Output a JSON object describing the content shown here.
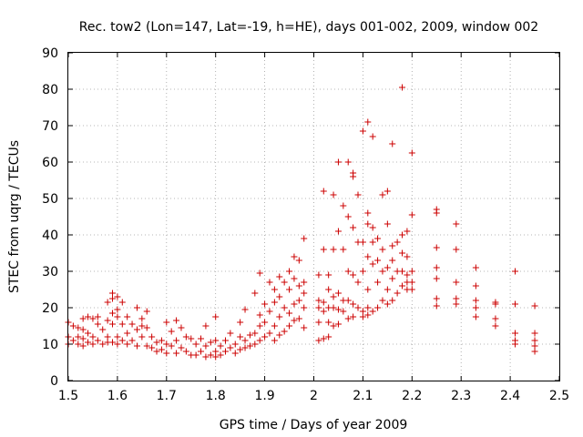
{
  "chart_data": {
    "type": "scatter",
    "title": "Rec. tow2 (Lon=147, Lat=-19, h=HE), days 001-002, 2009, window 002",
    "xlabel": "GPS time / Days of year 2009",
    "ylabel": "STEC from uqrg / TECUs",
    "xlim": [
      1.5,
      2.5
    ],
    "ylim": [
      0,
      90
    ],
    "xticks": [
      "1.5",
      "1.6",
      "1.7",
      "1.8",
      "1.9",
      "2",
      "2.1",
      "2.2",
      "2.3",
      "2.4",
      "2.5"
    ],
    "yticks": [
      "0",
      "10",
      "20",
      "30",
      "40",
      "50",
      "60",
      "70",
      "80",
      "90"
    ],
    "grid": true,
    "marker": "+",
    "color": "#cc0000",
    "series": [
      {
        "name": "STEC",
        "points": [
          [
            1.5,
            16.0
          ],
          [
            1.5,
            12.0
          ],
          [
            1.5,
            10.0
          ],
          [
            1.51,
            15.0
          ],
          [
            1.51,
            11.0
          ],
          [
            1.52,
            14.5
          ],
          [
            1.52,
            12.0
          ],
          [
            1.52,
            10.0
          ],
          [
            1.53,
            17.0
          ],
          [
            1.53,
            14.0
          ],
          [
            1.53,
            11.5
          ],
          [
            1.53,
            9.5
          ],
          [
            1.54,
            17.5
          ],
          [
            1.54,
            13.0
          ],
          [
            1.54,
            10.5
          ],
          [
            1.55,
            17.0
          ],
          [
            1.55,
            12.0
          ],
          [
            1.55,
            10.0
          ],
          [
            1.56,
            17.5
          ],
          [
            1.56,
            15.5
          ],
          [
            1.56,
            11.0
          ],
          [
            1.57,
            14.0
          ],
          [
            1.57,
            10.0
          ],
          [
            1.58,
            21.5
          ],
          [
            1.58,
            16.5
          ],
          [
            1.58,
            12.0
          ],
          [
            1.58,
            10.5
          ],
          [
            1.59,
            24.0
          ],
          [
            1.59,
            22.5
          ],
          [
            1.59,
            18.5
          ],
          [
            1.59,
            15.5
          ],
          [
            1.59,
            10.5
          ],
          [
            1.6,
            23.0
          ],
          [
            1.6,
            19.5
          ],
          [
            1.6,
            17.5
          ],
          [
            1.6,
            12.0
          ],
          [
            1.6,
            10.0
          ],
          [
            1.61,
            21.5
          ],
          [
            1.61,
            15.5
          ],
          [
            1.61,
            11.0
          ],
          [
            1.62,
            17.5
          ],
          [
            1.62,
            13.0
          ],
          [
            1.62,
            10.0
          ],
          [
            1.63,
            15.5
          ],
          [
            1.63,
            11.0
          ],
          [
            1.64,
            20.0
          ],
          [
            1.64,
            14.0
          ],
          [
            1.64,
            9.5
          ],
          [
            1.65,
            17.0
          ],
          [
            1.65,
            15.0
          ],
          [
            1.65,
            12.0
          ],
          [
            1.66,
            19.0
          ],
          [
            1.66,
            14.5
          ],
          [
            1.66,
            9.5
          ],
          [
            1.67,
            12.0
          ],
          [
            1.67,
            9.0
          ],
          [
            1.68,
            10.5
          ],
          [
            1.68,
            8.0
          ],
          [
            1.69,
            11.0
          ],
          [
            1.69,
            8.5
          ],
          [
            1.7,
            16.0
          ],
          [
            1.7,
            10.0
          ],
          [
            1.7,
            7.5
          ],
          [
            1.71,
            13.5
          ],
          [
            1.71,
            9.5
          ],
          [
            1.72,
            16.5
          ],
          [
            1.72,
            11.0
          ],
          [
            1.72,
            7.5
          ],
          [
            1.73,
            14.5
          ],
          [
            1.73,
            9.0
          ],
          [
            1.74,
            12.0
          ],
          [
            1.74,
            8.0
          ],
          [
            1.75,
            11.5
          ],
          [
            1.75,
            7.0
          ],
          [
            1.76,
            10.0
          ],
          [
            1.76,
            7.0
          ],
          [
            1.77,
            11.5
          ],
          [
            1.77,
            8.0
          ],
          [
            1.78,
            15.0
          ],
          [
            1.78,
            9.5
          ],
          [
            1.78,
            6.5
          ],
          [
            1.79,
            10.5
          ],
          [
            1.79,
            7.0
          ],
          [
            1.8,
            17.5
          ],
          [
            1.8,
            11.0
          ],
          [
            1.8,
            8.0
          ],
          [
            1.8,
            6.5
          ],
          [
            1.81,
            9.5
          ],
          [
            1.81,
            7.0
          ],
          [
            1.82,
            11.0
          ],
          [
            1.82,
            8.0
          ],
          [
            1.83,
            13.0
          ],
          [
            1.83,
            9.0
          ],
          [
            1.84,
            10.0
          ],
          [
            1.84,
            7.5
          ],
          [
            1.85,
            16.0
          ],
          [
            1.85,
            12.0
          ],
          [
            1.85,
            8.5
          ],
          [
            1.86,
            19.5
          ],
          [
            1.86,
            11.0
          ],
          [
            1.86,
            9.0
          ],
          [
            1.87,
            12.5
          ],
          [
            1.87,
            9.5
          ],
          [
            1.88,
            24.0
          ],
          [
            1.88,
            13.0
          ],
          [
            1.88,
            10.0
          ],
          [
            1.89,
            29.5
          ],
          [
            1.89,
            18.0
          ],
          [
            1.89,
            15.0
          ],
          [
            1.89,
            11.0
          ],
          [
            1.9,
            21.0
          ],
          [
            1.9,
            16.0
          ],
          [
            1.9,
            12.0
          ],
          [
            1.91,
            27.0
          ],
          [
            1.91,
            19.0
          ],
          [
            1.91,
            13.0
          ],
          [
            1.92,
            25.0
          ],
          [
            1.92,
            21.5
          ],
          [
            1.92,
            15.0
          ],
          [
            1.92,
            11.0
          ],
          [
            1.93,
            28.5
          ],
          [
            1.93,
            23.0
          ],
          [
            1.93,
            17.5
          ],
          [
            1.93,
            12.5
          ],
          [
            1.94,
            27.0
          ],
          [
            1.94,
            20.0
          ],
          [
            1.94,
            13.5
          ],
          [
            1.95,
            30.0
          ],
          [
            1.95,
            25.0
          ],
          [
            1.95,
            18.5
          ],
          [
            1.95,
            15.0
          ],
          [
            1.96,
            34.0
          ],
          [
            1.96,
            28.0
          ],
          [
            1.96,
            21.0
          ],
          [
            1.96,
            16.5
          ],
          [
            1.97,
            33.0
          ],
          [
            1.97,
            26.0
          ],
          [
            1.97,
            22.0
          ],
          [
            1.97,
            17.0
          ],
          [
            1.98,
            39.0
          ],
          [
            1.98,
            27.0
          ],
          [
            1.98,
            24.0
          ],
          [
            1.98,
            20.0
          ],
          [
            1.98,
            14.5
          ],
          [
            2.01,
            29.0
          ],
          [
            2.01,
            22.0
          ],
          [
            2.01,
            20.0
          ],
          [
            2.01,
            16.0
          ],
          [
            2.01,
            11.0
          ],
          [
            2.02,
            36.0
          ],
          [
            2.02,
            21.5
          ],
          [
            2.02,
            19.0
          ],
          [
            2.02,
            11.5
          ],
          [
            2.02,
            52.0
          ],
          [
            2.03,
            29.0
          ],
          [
            2.03,
            25.0
          ],
          [
            2.03,
            20.0
          ],
          [
            2.03,
            16.0
          ],
          [
            2.03,
            12.0
          ],
          [
            2.04,
            51.0
          ],
          [
            2.04,
            36.0
          ],
          [
            2.04,
            23.0
          ],
          [
            2.04,
            20.0
          ],
          [
            2.04,
            15.0
          ],
          [
            2.05,
            60.0
          ],
          [
            2.05,
            41.0
          ],
          [
            2.05,
            24.0
          ],
          [
            2.05,
            19.5
          ],
          [
            2.05,
            15.5
          ],
          [
            2.06,
            48.0
          ],
          [
            2.06,
            36.0
          ],
          [
            2.06,
            22.0
          ],
          [
            2.06,
            19.0
          ],
          [
            2.07,
            60.0
          ],
          [
            2.07,
            45.0
          ],
          [
            2.07,
            30.0
          ],
          [
            2.07,
            22.0
          ],
          [
            2.07,
            17.0
          ],
          [
            2.08,
            57.0
          ],
          [
            2.08,
            56.0
          ],
          [
            2.08,
            42.0
          ],
          [
            2.08,
            29.0
          ],
          [
            2.08,
            21.0
          ],
          [
            2.08,
            17.5
          ],
          [
            2.09,
            51.0
          ],
          [
            2.09,
            38.0
          ],
          [
            2.09,
            27.0
          ],
          [
            2.09,
            20.0
          ],
          [
            2.1,
            68.5
          ],
          [
            2.1,
            38.0
          ],
          [
            2.1,
            30.0
          ],
          [
            2.1,
            19.0
          ],
          [
            2.1,
            17.5
          ],
          [
            2.11,
            71.0
          ],
          [
            2.11,
            46.0
          ],
          [
            2.11,
            43.0
          ],
          [
            2.11,
            34.0
          ],
          [
            2.11,
            25.0
          ],
          [
            2.11,
            20.0
          ],
          [
            2.11,
            18.0
          ],
          [
            2.12,
            67.0
          ],
          [
            2.12,
            42.0
          ],
          [
            2.12,
            38.0
          ],
          [
            2.12,
            32.0
          ],
          [
            2.12,
            19.0
          ],
          [
            2.13,
            39.0
          ],
          [
            2.13,
            33.0
          ],
          [
            2.13,
            27.0
          ],
          [
            2.13,
            20.0
          ],
          [
            2.14,
            51.0
          ],
          [
            2.14,
            36.0
          ],
          [
            2.14,
            30.0
          ],
          [
            2.14,
            22.0
          ],
          [
            2.15,
            52.0
          ],
          [
            2.15,
            43.0
          ],
          [
            2.15,
            31.0
          ],
          [
            2.15,
            25.0
          ],
          [
            2.15,
            21.0
          ],
          [
            2.16,
            65.0
          ],
          [
            2.16,
            37.0
          ],
          [
            2.16,
            33.0
          ],
          [
            2.16,
            28.0
          ],
          [
            2.16,
            22.0
          ],
          [
            2.17,
            38.0
          ],
          [
            2.17,
            30.0
          ],
          [
            2.17,
            24.0
          ],
          [
            2.18,
            80.5
          ],
          [
            2.18,
            40.0
          ],
          [
            2.18,
            35.0
          ],
          [
            2.18,
            30.0
          ],
          [
            2.18,
            26.0
          ],
          [
            2.19,
            41.0
          ],
          [
            2.19,
            34.0
          ],
          [
            2.19,
            29.0
          ],
          [
            2.19,
            27.0
          ],
          [
            2.19,
            25.0
          ],
          [
            2.2,
            62.5
          ],
          [
            2.2,
            45.5
          ],
          [
            2.2,
            30.0
          ],
          [
            2.2,
            27.0
          ],
          [
            2.2,
            25.0
          ],
          [
            2.25,
            47.0
          ],
          [
            2.25,
            46.0
          ],
          [
            2.25,
            36.5
          ],
          [
            2.25,
            31.0
          ],
          [
            2.25,
            28.0
          ],
          [
            2.25,
            22.5
          ],
          [
            2.25,
            20.5
          ],
          [
            2.29,
            43.0
          ],
          [
            2.29,
            36.0
          ],
          [
            2.29,
            27.0
          ],
          [
            2.29,
            22.5
          ],
          [
            2.29,
            21.0
          ],
          [
            2.33,
            31.0
          ],
          [
            2.33,
            26.0
          ],
          [
            2.33,
            22.0
          ],
          [
            2.33,
            20.0
          ],
          [
            2.33,
            17.5
          ],
          [
            2.37,
            21.5
          ],
          [
            2.37,
            21.0
          ],
          [
            2.37,
            17.0
          ],
          [
            2.37,
            15.0
          ],
          [
            2.41,
            30.0
          ],
          [
            2.41,
            21.0
          ],
          [
            2.41,
            13.0
          ],
          [
            2.41,
            11.0
          ],
          [
            2.41,
            10.0
          ],
          [
            2.45,
            20.5
          ],
          [
            2.45,
            13.0
          ],
          [
            2.45,
            11.0
          ],
          [
            2.45,
            9.5
          ],
          [
            2.45,
            8.0
          ]
        ]
      }
    ]
  }
}
